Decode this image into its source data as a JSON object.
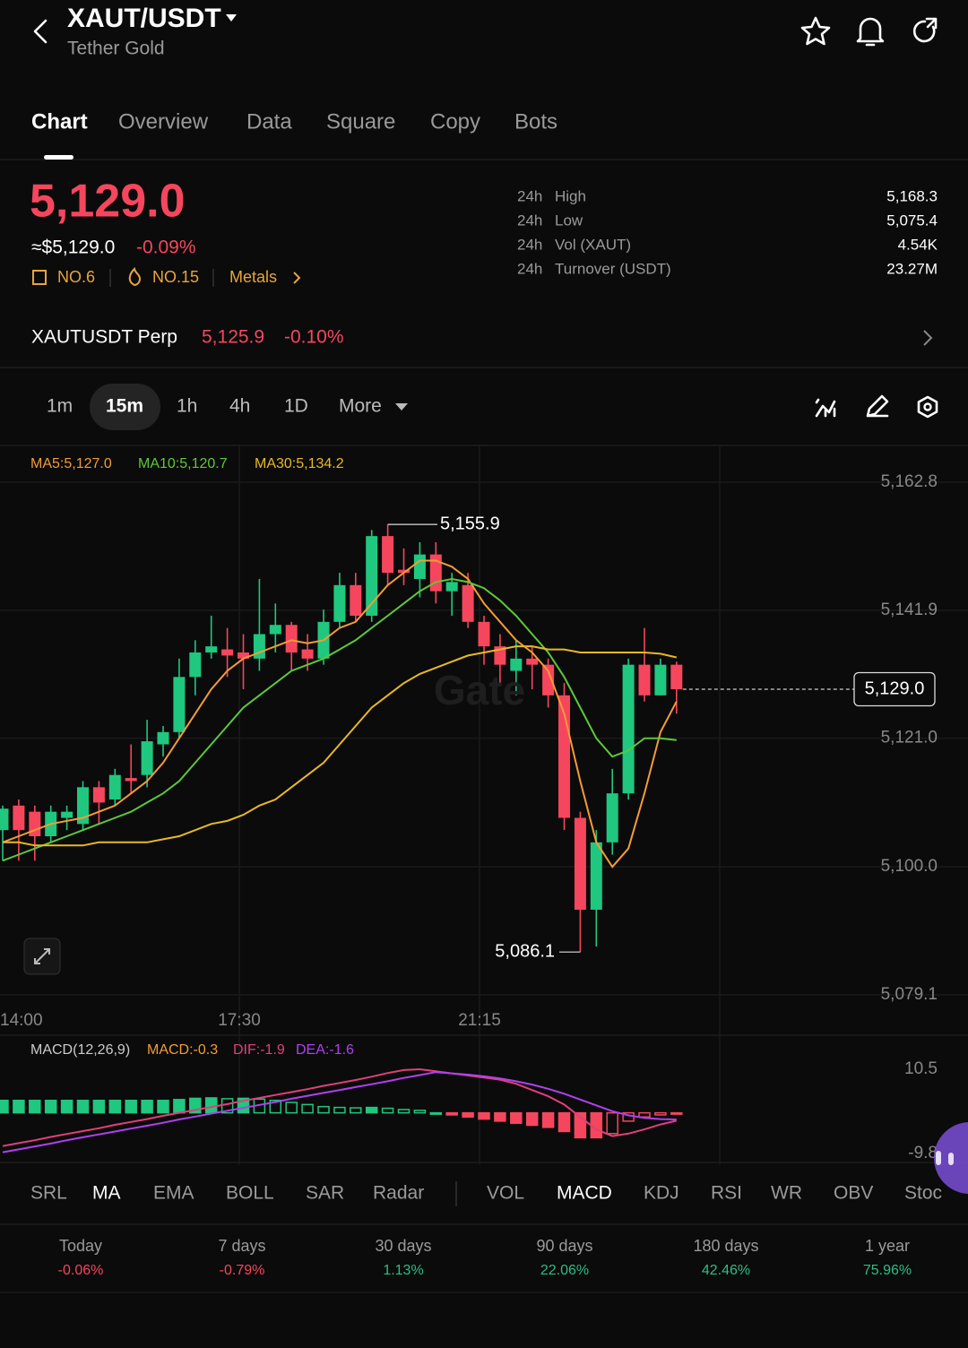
{
  "header": {
    "pair": "XAUT/USDT",
    "name": "Tether Gold"
  },
  "tabs": [
    "Chart",
    "Overview",
    "Data",
    "Square",
    "Copy",
    "Bots"
  ],
  "price": {
    "last": "5,129.0",
    "fiat": "≈$5,129.0",
    "change": "-0.09%",
    "badges": [
      "NO.6",
      "NO.15",
      "Metals"
    ]
  },
  "stats": [
    {
      "period": "24h",
      "label": "High",
      "value": "5,168.3"
    },
    {
      "period": "24h",
      "label": "Low",
      "value": "5,075.4"
    },
    {
      "period": "24h",
      "label": "Vol (XAUT)",
      "value": "4.54K"
    },
    {
      "period": "24h",
      "label": "Turnover (USDT)",
      "value": "23.27M"
    }
  ],
  "perp": {
    "name": "XAUTUSDT Perp",
    "price": "5,125.9",
    "change": "-0.10%"
  },
  "timeframes": [
    "1m",
    "15m",
    "1h",
    "4h",
    "1D",
    "More"
  ],
  "chart_data": {
    "type": "candlestick",
    "watermark": "Gate",
    "up_color": "#20c77f",
    "down_color": "#f6465d",
    "open": [
      5106,
      5110,
      5109,
      5105,
      5108,
      5107,
      5113,
      5111,
      5114.5,
      5115,
      5120,
      5122,
      5131,
      5135,
      5135.5,
      5135,
      5134,
      5138,
      5139.5,
      5135.5,
      5134,
      5140,
      5146,
      5141,
      5154,
      5148.5,
      5147,
      5151,
      5145,
      5146,
      5140,
      5136,
      5132,
      5134,
      5133,
      5128,
      5108,
      5093,
      5104,
      5112,
      5133,
      5128,
      5133
    ],
    "high": [
      5110,
      5111,
      5110,
      5110,
      5110,
      5114,
      5114,
      5116,
      5120,
      5124,
      5123,
      5134,
      5137,
      5141,
      5139,
      5138,
      5147,
      5143,
      5140,
      5138,
      5142,
      5148,
      5148,
      5155,
      5155.9,
      5152,
      5153,
      5153,
      5148,
      5148,
      5141,
      5138,
      5137,
      5136,
      5134,
      5130,
      5109,
      5106,
      5116,
      5134,
      5139,
      5134,
      5133.5
    ],
    "low": [
      5101,
      5101,
      5101,
      5104,
      5106,
      5106,
      5107,
      5110,
      5112,
      5113,
      5118,
      5121,
      5128,
      5134,
      5131,
      5129,
      5132,
      5135,
      5132,
      5132,
      5133,
      5139,
      5140,
      5140,
      5146,
      5146,
      5144,
      5143,
      5141,
      5139,
      5133,
      5130,
      5128,
      5129,
      5126,
      5106,
      5086.1,
      5087,
      5102,
      5111,
      5127,
      5128,
      5125
    ],
    "close": [
      5109.5,
      5106,
      5105,
      5109,
      5109,
      5113,
      5110.5,
      5115,
      5114,
      5120.5,
      5122,
      5131,
      5135,
      5136,
      5134.5,
      5134,
      5138,
      5139.5,
      5135,
      5134,
      5140,
      5146,
      5141,
      5154,
      5148,
      5148,
      5151,
      5145,
      5146.5,
      5140,
      5136,
      5133,
      5134,
      5133,
      5128,
      5108,
      5093,
      5104,
      5112,
      5133,
      5128,
      5133,
      5129
    ],
    "ma_series": [
      {
        "name": "MA5:5,127.0",
        "color": "#f39c35",
        "values": [
          5104,
          5105,
          5106,
          5107,
          5107.5,
          5108,
          5109,
          5110,
          5112,
          5114,
          5117,
          5121,
          5125,
          5129,
          5132,
          5134,
          5135,
          5136,
          5137,
          5136.5,
          5137,
          5139,
          5140,
          5143,
          5146,
          5148,
          5150,
          5150,
          5149,
          5147,
          5143,
          5140,
          5137,
          5135,
          5132,
          5125,
          5114,
          5104,
          5100,
          5103,
          5112,
          5122,
          5127
        ]
      },
      {
        "name": "MA10:5,120.7",
        "color": "#5dc83a",
        "values": [
          5101,
          5102,
          5103,
          5104,
          5105,
          5106,
          5107,
          5108,
          5109,
          5110.5,
          5112,
          5114,
          5117,
          5120,
          5123,
          5126,
          5128,
          5130,
          5132,
          5133,
          5134,
          5135.5,
          5137,
          5139,
          5141,
          5143,
          5145,
          5146.5,
          5147,
          5146.5,
          5145.5,
          5143.5,
          5141,
          5138,
          5135,
          5131,
          5126,
          5121,
          5118,
          5119,
          5121,
          5121,
          5120.7
        ]
      },
      {
        "name": "MA30:5,134.2",
        "color": "#e8b923",
        "values": [
          5104,
          5104,
          5103.5,
          5103.5,
          5103.5,
          5103.5,
          5104,
          5104,
          5104,
          5104,
          5104.5,
          5105,
          5106,
          5107,
          5107.5,
          5108.5,
          5110,
          5111,
          5113,
          5115,
          5117,
          5120,
          5123,
          5126,
          5128,
          5130,
          5131.5,
          5132.5,
          5133.5,
          5134.5,
          5135,
          5135.5,
          5136,
          5136,
          5135.5,
          5135.5,
          5135,
          5135,
          5135,
          5135,
          5135,
          5134.8,
          5134.2
        ]
      }
    ],
    "ylim": [
      5079.1,
      5162.8
    ],
    "yticks": [
      {
        "value": 5162.8,
        "label": "5,162.8"
      },
      {
        "value": 5141.9,
        "label": "5,141.9"
      },
      {
        "value": 5121.0,
        "label": "5,121.0"
      },
      {
        "value": 5100.0,
        "label": "5,100.0"
      },
      {
        "value": 5079.1,
        "label": "5,079.1"
      }
    ],
    "x_labels": [
      "14:00",
      "17:30",
      "21:15"
    ],
    "high_marker": {
      "value": 5155.9,
      "label": "5,155.9"
    },
    "low_marker": {
      "value": 5086.1,
      "label": "5,086.1"
    },
    "last_marker": {
      "value": 5129.0,
      "label": "5,129.0"
    },
    "macd": {
      "title": "MACD(12,26,9)",
      "labels": [
        {
          "text": "MACD:-0.3",
          "color": "#f39c35"
        },
        {
          "text": "DIF:-1.9",
          "color": "#e0407a"
        },
        {
          "text": "DEA:-1.6",
          "color": "#b040f0"
        }
      ],
      "ylim": [
        -9.8,
        10.5
      ],
      "yticks": [
        10.5,
        -9.8
      ],
      "histogram": [
        3,
        3,
        3,
        3,
        3,
        3,
        3,
        3,
        3,
        3,
        3,
        3.2,
        3.5,
        3.6,
        3.4,
        3.5,
        3.3,
        3,
        2.5,
        2,
        1.5,
        1.3,
        1.2,
        1.3,
        1.1,
        0.8,
        0.6,
        0,
        -0.5,
        -1,
        -1.5,
        -2,
        -2.5,
        -3,
        -3.5,
        -4.5,
        -6,
        -6,
        -5,
        -2,
        -1,
        -0.5,
        -0.3
      ],
      "dif": [
        -8,
        -7.3,
        -6.6,
        -5.8,
        -5.1,
        -4.4,
        -3.7,
        -2.9,
        -2.2,
        -1.5,
        -0.7,
        0,
        0.7,
        1.4,
        2.1,
        2.9,
        3.6,
        4.3,
        5,
        5.7,
        6.5,
        7.2,
        7.9,
        8.7,
        9.6,
        10.3,
        10.5,
        10,
        9.5,
        9,
        8.5,
        8,
        7,
        5.5,
        4,
        2,
        -1,
        -4,
        -5.6,
        -5,
        -4,
        -2.8,
        -1.9
      ],
      "dea": [
        -9.5,
        -8.8,
        -8.1,
        -7.4,
        -6.6,
        -5.9,
        -5.2,
        -4.5,
        -3.8,
        -3.1,
        -2.4,
        -1.6,
        -0.9,
        -0.2,
        0.5,
        1.2,
        1.9,
        2.6,
        3.4,
        4.1,
        4.8,
        5.5,
        6.2,
        6.9,
        7.6,
        8.4,
        9.1,
        9.8,
        9.5,
        9.2,
        8.8,
        8.3,
        7.6,
        6.8,
        5.8,
        4.6,
        3.2,
        1.8,
        0.4,
        -0.6,
        -1.2,
        -1.5,
        -1.6
      ]
    }
  },
  "indicators": [
    "SRL",
    "MA",
    "EMA",
    "BOLL",
    "SAR",
    "Radar",
    "VOL",
    "MACD",
    "KDJ",
    "RSI",
    "WR",
    "OBV",
    "Stoc"
  ],
  "performance": [
    {
      "period": "Today",
      "change": "-0.06%"
    },
    {
      "period": "7 days",
      "change": "-0.79%"
    },
    {
      "period": "30 days",
      "change": "1.13%"
    },
    {
      "period": "90 days",
      "change": "22.06%"
    },
    {
      "period": "180 days",
      "change": "42.46%"
    },
    {
      "period": "1 year",
      "change": "75.96%"
    }
  ]
}
